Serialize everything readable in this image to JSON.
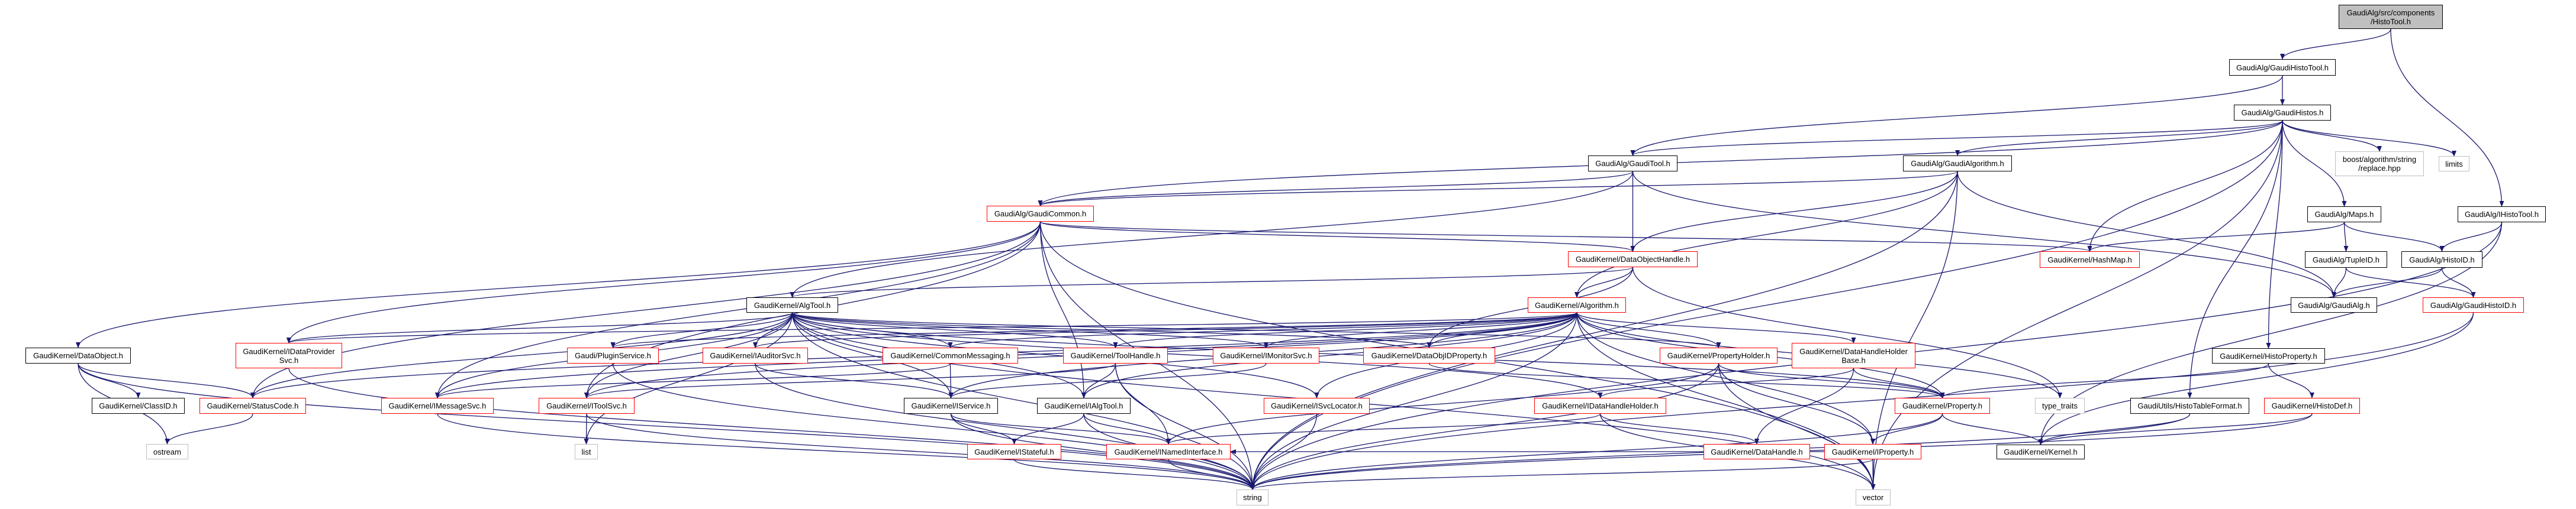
{
  "graph": {
    "edge_color": "#191970",
    "node_border_colors": {
      "documented": "#000000",
      "truncated": "#ff0000",
      "external": "#bfbfbf"
    },
    "root_fill": "#bfbfbf",
    "nodes": [
      {
        "id": "HistoTool",
        "label": "GaudiAlg/src/components\n/HistoTool.h",
        "kind": "root"
      },
      {
        "id": "GaudiHistoTool",
        "label": "GaudiAlg/GaudiHistoTool.h",
        "kind": "documented"
      },
      {
        "id": "GaudiHistos",
        "label": "GaudiAlg/GaudiHistos.h",
        "kind": "documented"
      },
      {
        "id": "GaudiTool",
        "label": "GaudiAlg/GaudiTool.h",
        "kind": "documented"
      },
      {
        "id": "GaudiAlgorithm",
        "label": "GaudiAlg/GaudiAlgorithm.h",
        "kind": "documented"
      },
      {
        "id": "boost",
        "label": "boost/algorithm/string\n/replace.hpp",
        "kind": "external"
      },
      {
        "id": "limits",
        "label": "limits",
        "kind": "external"
      },
      {
        "id": "GaudiCommon",
        "label": "GaudiAlg/GaudiCommon.h",
        "kind": "truncated"
      },
      {
        "id": "Maps",
        "label": "GaudiAlg/Maps.h",
        "kind": "documented"
      },
      {
        "id": "IHistoTool",
        "label": "GaudiAlg/IHistoTool.h",
        "kind": "documented"
      },
      {
        "id": "DataObjectHandle",
        "label": "GaudiKernel/DataObjectHandle.h",
        "kind": "truncated"
      },
      {
        "id": "HashMap",
        "label": "GaudiKernel/HashMap.h",
        "kind": "truncated"
      },
      {
        "id": "TupleID",
        "label": "GaudiAlg/TupleID.h",
        "kind": "documented"
      },
      {
        "id": "HistoID",
        "label": "GaudiAlg/HistoID.h",
        "kind": "documented"
      },
      {
        "id": "AlgTool",
        "label": "GaudiKernel/AlgTool.h",
        "kind": "documented"
      },
      {
        "id": "Algorithm",
        "label": "GaudiKernel/Algorithm.h",
        "kind": "truncated"
      },
      {
        "id": "GaudiAlg",
        "label": "GaudiAlg/GaudiAlg.h",
        "kind": "documented"
      },
      {
        "id": "GaudiHistoID",
        "label": "GaudiAlg/GaudiHistoID.h",
        "kind": "truncated"
      },
      {
        "id": "DataObject",
        "label": "GaudiKernel/DataObject.h",
        "kind": "documented"
      },
      {
        "id": "IDataProviderSvc",
        "label": "GaudiKernel/IDataProvider\nSvc.h",
        "kind": "truncated"
      },
      {
        "id": "PluginService",
        "label": "Gaudi/PluginService.h",
        "kind": "truncated"
      },
      {
        "id": "IAuditorSvc",
        "label": "GaudiKernel/IAuditorSvc.h",
        "kind": "truncated"
      },
      {
        "id": "CommonMessaging",
        "label": "GaudiKernel/CommonMessaging.h",
        "kind": "truncated"
      },
      {
        "id": "ToolHandle",
        "label": "GaudiKernel/ToolHandle.h",
        "kind": "truncated"
      },
      {
        "id": "IMonitorSvc",
        "label": "GaudiKernel/IMonitorSvc.h",
        "kind": "truncated"
      },
      {
        "id": "DataObjIDProperty",
        "label": "GaudiKernel/DataObjIDProperty.h",
        "kind": "truncated"
      },
      {
        "id": "PropertyHolder",
        "label": "GaudiKernel/PropertyHolder.h",
        "kind": "truncated"
      },
      {
        "id": "DataHandleHolderBase",
        "label": "GaudiKernel/DataHandleHolder\nBase.h",
        "kind": "truncated"
      },
      {
        "id": "HistoProperty",
        "label": "GaudiKernel/HistoProperty.h",
        "kind": "documented"
      },
      {
        "id": "ClassID",
        "label": "GaudiKernel/ClassID.h",
        "kind": "documented"
      },
      {
        "id": "StatusCode",
        "label": "GaudiKernel/StatusCode.h",
        "kind": "truncated"
      },
      {
        "id": "IMessageSvc",
        "label": "GaudiKernel/IMessageSvc.h",
        "kind": "truncated"
      },
      {
        "id": "IToolSvc",
        "label": "GaudiKernel/IToolSvc.h",
        "kind": "truncated"
      },
      {
        "id": "IService",
        "label": "GaudiKernel/IService.h",
        "kind": "documented"
      },
      {
        "id": "IAlgTool",
        "label": "GaudiKernel/IAlgTool.h",
        "kind": "documented"
      },
      {
        "id": "ISvcLocator",
        "label": "GaudiKernel/ISvcLocator.h",
        "kind": "truncated"
      },
      {
        "id": "IDataHandleHolder",
        "label": "GaudiKernel/IDataHandleHolder.h",
        "kind": "truncated"
      },
      {
        "id": "Property",
        "label": "GaudiKernel/Property.h",
        "kind": "truncated"
      },
      {
        "id": "type_traits",
        "label": "type_traits",
        "kind": "external"
      },
      {
        "id": "HistoTableFormat",
        "label": "GaudiUtils/HistoTableFormat.h",
        "kind": "documented"
      },
      {
        "id": "HistoDef",
        "label": "GaudiKernel/HistoDef.h",
        "kind": "truncated"
      },
      {
        "id": "ostream",
        "label": "ostream",
        "kind": "external"
      },
      {
        "id": "list",
        "label": "list",
        "kind": "external"
      },
      {
        "id": "IStateful",
        "label": "GaudiKernel/IStateful.h",
        "kind": "truncated"
      },
      {
        "id": "INamedInterface",
        "label": "GaudiKernel/INamedInterface.h",
        "kind": "truncated"
      },
      {
        "id": "DataHandle",
        "label": "GaudiKernel/DataHandle.h",
        "kind": "truncated"
      },
      {
        "id": "IProperty",
        "label": "GaudiKernel/IProperty.h",
        "kind": "truncated"
      },
      {
        "id": "Kernel",
        "label": "GaudiKernel/Kernel.h",
        "kind": "documented"
      },
      {
        "id": "string",
        "label": "string",
        "kind": "external"
      },
      {
        "id": "vector",
        "label": "vector",
        "kind": "external"
      }
    ],
    "edges": [
      [
        "HistoTool",
        "GaudiHistoTool"
      ],
      [
        "HistoTool",
        "IHistoTool"
      ],
      [
        "GaudiHistoTool",
        "GaudiHistos"
      ],
      [
        "GaudiHistoTool",
        "GaudiTool"
      ],
      [
        "GaudiHistos",
        "GaudiTool"
      ],
      [
        "GaudiHistos",
        "GaudiAlgorithm"
      ],
      [
        "GaudiHistos",
        "GaudiCommon"
      ],
      [
        "GaudiHistos",
        "boost"
      ],
      [
        "GaudiHistos",
        "limits"
      ],
      [
        "GaudiHistos",
        "Maps"
      ],
      [
        "GaudiHistos",
        "HashMap"
      ],
      [
        "GaudiHistos",
        "HistoProperty"
      ],
      [
        "GaudiHistos",
        "HistoTableFormat"
      ],
      [
        "GaudiHistos",
        "vector"
      ],
      [
        "GaudiHistos",
        "string"
      ],
      [
        "GaudiTool",
        "GaudiCommon"
      ],
      [
        "GaudiTool",
        "AlgTool"
      ],
      [
        "GaudiTool",
        "DataObjectHandle"
      ],
      [
        "GaudiTool",
        "GaudiAlg"
      ],
      [
        "GaudiAlgorithm",
        "GaudiCommon"
      ],
      [
        "GaudiAlgorithm",
        "Algorithm"
      ],
      [
        "GaudiAlgorithm",
        "DataObjectHandle"
      ],
      [
        "GaudiAlgorithm",
        "GaudiAlg"
      ],
      [
        "GaudiAlgorithm",
        "string"
      ],
      [
        "GaudiAlgorithm",
        "vector"
      ],
      [
        "GaudiCommon",
        "DataObject"
      ],
      [
        "GaudiCommon",
        "StatusCode"
      ],
      [
        "GaudiCommon",
        "IDataProviderSvc"
      ],
      [
        "GaudiCommon",
        "IMessageSvc"
      ],
      [
        "GaudiCommon",
        "IToolSvc"
      ],
      [
        "GaudiCommon",
        "IAlgTool"
      ],
      [
        "GaudiCommon",
        "HashMap"
      ],
      [
        "GaudiCommon",
        "DataObjectHandle"
      ],
      [
        "GaudiCommon",
        "string"
      ],
      [
        "GaudiCommon",
        "vector"
      ],
      [
        "DataObjectHandle",
        "Algorithm"
      ],
      [
        "DataObjectHandle",
        "AlgTool"
      ],
      [
        "DataObjectHandle",
        "DataObjIDProperty"
      ],
      [
        "DataObjectHandle",
        "type_traits"
      ],
      [
        "Maps",
        "HashMap"
      ],
      [
        "Maps",
        "TupleID"
      ],
      [
        "Maps",
        "HistoID"
      ],
      [
        "IHistoTool",
        "HistoID"
      ],
      [
        "IHistoTool",
        "string"
      ],
      [
        "IHistoTool",
        "Kernel"
      ],
      [
        "TupleID",
        "GaudiAlg"
      ],
      [
        "TupleID",
        "GaudiHistoID"
      ],
      [
        "HistoID",
        "GaudiAlg"
      ],
      [
        "HistoID",
        "GaudiHistoID"
      ],
      [
        "GaudiHistoID",
        "string"
      ],
      [
        "GaudiHistoID",
        "Kernel"
      ],
      [
        "HistoProperty",
        "Property"
      ],
      [
        "HistoProperty",
        "HistoDef"
      ],
      [
        "HistoDef",
        "Kernel"
      ],
      [
        "HistoDef",
        "string"
      ],
      [
        "HistoTableFormat",
        "Kernel"
      ],
      [
        "HistoTableFormat",
        "string"
      ],
      [
        "Property",
        "Kernel"
      ],
      [
        "Property",
        "IProperty"
      ],
      [
        "Property",
        "string"
      ],
      [
        "AlgTool",
        "IDataProviderSvc"
      ],
      [
        "AlgTool",
        "PluginService"
      ],
      [
        "AlgTool",
        "IAuditorSvc"
      ],
      [
        "AlgTool",
        "CommonMessaging"
      ],
      [
        "AlgTool",
        "ToolHandle"
      ],
      [
        "AlgTool",
        "IMonitorSvc"
      ],
      [
        "AlgTool",
        "DataObjIDProperty"
      ],
      [
        "AlgTool",
        "IService"
      ],
      [
        "AlgTool",
        "IAlgTool"
      ],
      [
        "AlgTool",
        "ISvcLocator"
      ],
      [
        "AlgTool",
        "IMessageSvc"
      ],
      [
        "AlgTool",
        "IToolSvc"
      ],
      [
        "AlgTool",
        "StatusCode"
      ],
      [
        "AlgTool",
        "Property"
      ],
      [
        "AlgTool",
        "PropertyHolder"
      ],
      [
        "AlgTool",
        "IDataHandleHolder"
      ],
      [
        "AlgTool",
        "list"
      ],
      [
        "AlgTool",
        "string"
      ],
      [
        "AlgTool",
        "vector"
      ],
      [
        "Algorithm",
        "IDataProviderSvc"
      ],
      [
        "Algorithm",
        "PluginService"
      ],
      [
        "Algorithm",
        "IAuditorSvc"
      ],
      [
        "Algorithm",
        "CommonMessaging"
      ],
      [
        "Algorithm",
        "ToolHandle"
      ],
      [
        "Algorithm",
        "IMonitorSvc"
      ],
      [
        "Algorithm",
        "DataObjIDProperty"
      ],
      [
        "Algorithm",
        "PropertyHolder"
      ],
      [
        "Algorithm",
        "DataHandleHolderBase"
      ],
      [
        "Algorithm",
        "IService"
      ],
      [
        "Algorithm",
        "IAlgTool"
      ],
      [
        "Algorithm",
        "ISvcLocator"
      ],
      [
        "Algorithm",
        "IMessageSvc"
      ],
      [
        "Algorithm",
        "IToolSvc"
      ],
      [
        "Algorithm",
        "StatusCode"
      ],
      [
        "Algorithm",
        "Property"
      ],
      [
        "Algorithm",
        "IProperty"
      ],
      [
        "Algorithm",
        "string"
      ],
      [
        "Algorithm",
        "vector"
      ],
      [
        "Algorithm",
        "type_traits"
      ],
      [
        "DataObject",
        "ClassID"
      ],
      [
        "DataObject",
        "StatusCode"
      ],
      [
        "DataObject",
        "ostream"
      ],
      [
        "DataObject",
        "string"
      ],
      [
        "StatusCode",
        "ostream"
      ],
      [
        "IToolSvc",
        "list"
      ],
      [
        "IToolSvc",
        "string"
      ],
      [
        "IMessageSvc",
        "string"
      ],
      [
        "IDataProviderSvc",
        "string"
      ],
      [
        "IAuditorSvc",
        "IService"
      ],
      [
        "IAuditorSvc",
        "string"
      ],
      [
        "CommonMessaging",
        "IService"
      ],
      [
        "CommonMessaging",
        "IMessageSvc"
      ],
      [
        "ToolHandle",
        "IAlgTool"
      ],
      [
        "ToolHandle",
        "INamedInterface"
      ],
      [
        "ToolHandle",
        "IToolSvc"
      ],
      [
        "ToolHandle",
        "string"
      ],
      [
        "IService",
        "IStateful"
      ],
      [
        "IService",
        "INamedInterface"
      ],
      [
        "IService",
        "string"
      ],
      [
        "IAlgTool",
        "IStateful"
      ],
      [
        "IAlgTool",
        "INamedInterface"
      ],
      [
        "IAlgTool",
        "string"
      ],
      [
        "ISvcLocator",
        "string"
      ],
      [
        "PropertyHolder",
        "IProperty"
      ],
      [
        "PropertyHolder",
        "Property"
      ],
      [
        "PropertyHolder",
        "INamedInterface"
      ],
      [
        "PropertyHolder",
        "string"
      ],
      [
        "PropertyHolder",
        "vector"
      ],
      [
        "DataHandleHolderBase",
        "IDataHandleHolder"
      ],
      [
        "DataHandleHolderBase",
        "DataHandle"
      ],
      [
        "DataHandleHolderBase",
        "Property"
      ],
      [
        "IDataHandleHolder",
        "DataHandle"
      ],
      [
        "IDataHandleHolder",
        "INamedInterface"
      ],
      [
        "IDataHandleHolder",
        "vector"
      ],
      [
        "IProperty",
        "vector"
      ],
      [
        "IProperty",
        "string"
      ],
      [
        "IProperty",
        "INamedInterface"
      ],
      [
        "DataObjIDProperty",
        "Property"
      ],
      [
        "IMonitorSvc",
        "IService"
      ],
      [
        "PluginService",
        "string"
      ],
      [
        "IStateful",
        "string"
      ],
      [
        "INamedInterface",
        "string"
      ]
    ]
  }
}
